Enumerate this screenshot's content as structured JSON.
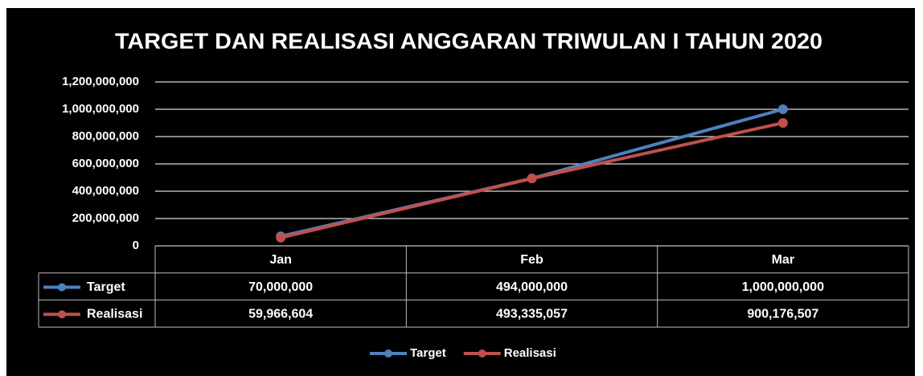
{
  "chart_data": {
    "type": "line",
    "title": "TARGET DAN REALISASI ANGGARAN TRIWULAN I TAHUN 2020",
    "categories": [
      "Jan",
      "Feb",
      "Mar"
    ],
    "series": [
      {
        "name": "Target",
        "color": "#4f81bd",
        "values": [
          70000000,
          494000000,
          1000000000
        ],
        "value_labels": [
          "70,000,000",
          "494,000,000",
          "1,000,000,000"
        ]
      },
      {
        "name": "Realisasi",
        "color": "#c0504d",
        "values": [
          59966604,
          493335057,
          900176507
        ],
        "value_labels": [
          "59,966,604",
          "493,335,057",
          "900,176,507"
        ]
      }
    ],
    "ylim": [
      0,
      1200000000
    ],
    "yticks": [
      0,
      {
        "value": 200000000,
        "label": "200,000,000"
      },
      {
        "value": 400000000,
        "label": "400,000,000"
      },
      {
        "value": 600000000,
        "label": "600,000,000"
      },
      {
        "value": 800000000,
        "label": "800,000,000"
      },
      {
        "value": 1000000000,
        "label": "1,000,000,000"
      },
      {
        "value": 1200000000,
        "label": "1,200,000,000"
      }
    ],
    "grid": true,
    "legend": "bottom"
  }
}
